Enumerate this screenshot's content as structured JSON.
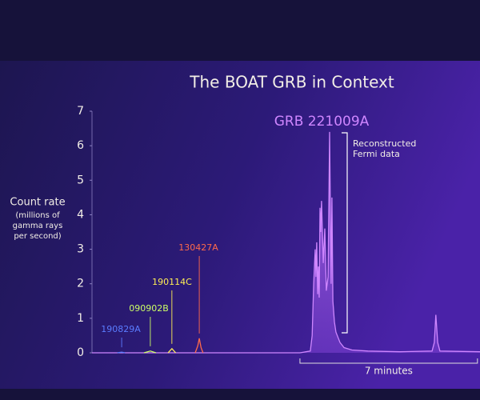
{
  "chart_data": {
    "type": "line",
    "title": "The BOAT GRB in Context",
    "ylabel": "Count rate",
    "ylabel_note": [
      "(millions of",
      "gamma rays",
      "per second)"
    ],
    "xlim": [
      0,
      15.3
    ],
    "ylim": [
      0,
      7
    ],
    "yticks": [
      0,
      1,
      2,
      3,
      4,
      5,
      6,
      7
    ],
    "fermi_note": [
      "Reconstructed",
      "Fermi data"
    ],
    "scale_bar": {
      "label": "7 minutes",
      "from": 8.2,
      "to": 15.2
    },
    "series": [
      {
        "name": "GRB 221009A",
        "color": "#cf86ff",
        "fill": true,
        "x": [
          0,
          8.2,
          8.61,
          8.68,
          8.74,
          8.8,
          8.83,
          8.86,
          8.9,
          8.93,
          8.96,
          8.99,
          9.02,
          9.05,
          9.12,
          9.18,
          9.24,
          9.31,
          9.37,
          9.4,
          9.43,
          9.46,
          9.5,
          9.56,
          9.62,
          9.78,
          9.94,
          10.25,
          10.88,
          12.15,
          13.41,
          13.5,
          13.56,
          13.63,
          13.72,
          15.3
        ],
        "values": [
          0,
          0,
          0.05,
          0.5,
          2.0,
          3.0,
          2.2,
          3.2,
          1.7,
          2.5,
          1.6,
          4.2,
          3.5,
          4.4,
          2.6,
          3.6,
          1.8,
          2.2,
          6.4,
          4.0,
          2.0,
          4.5,
          1.5,
          0.9,
          0.6,
          0.3,
          0.15,
          0.08,
          0.05,
          0.03,
          0.05,
          0.3,
          1.1,
          0.3,
          0.05,
          0.03
        ]
      },
      {
        "name": "190829A",
        "color": "#5a7cff",
        "fill": false,
        "x": [
          1.0,
          1.17,
          1.3
        ],
        "values": [
          0,
          0.02,
          0
        ]
      },
      {
        "name": "090902B",
        "color": "#ccff66",
        "fill": false,
        "x": [
          2.05,
          2.3,
          2.52
        ],
        "values": [
          0,
          0.05,
          0
        ]
      },
      {
        "name": "190114C",
        "color": "#ffee55",
        "fill": false,
        "x": [
          3.0,
          3.15,
          3.3
        ],
        "values": [
          0,
          0.12,
          0
        ]
      },
      {
        "name": "130427A",
        "color": "#ff6a4a",
        "fill": false,
        "x": [
          4.07,
          4.17,
          4.23,
          4.3,
          4.38
        ],
        "values": [
          0,
          0.2,
          0.42,
          0.15,
          0
        ]
      }
    ]
  }
}
